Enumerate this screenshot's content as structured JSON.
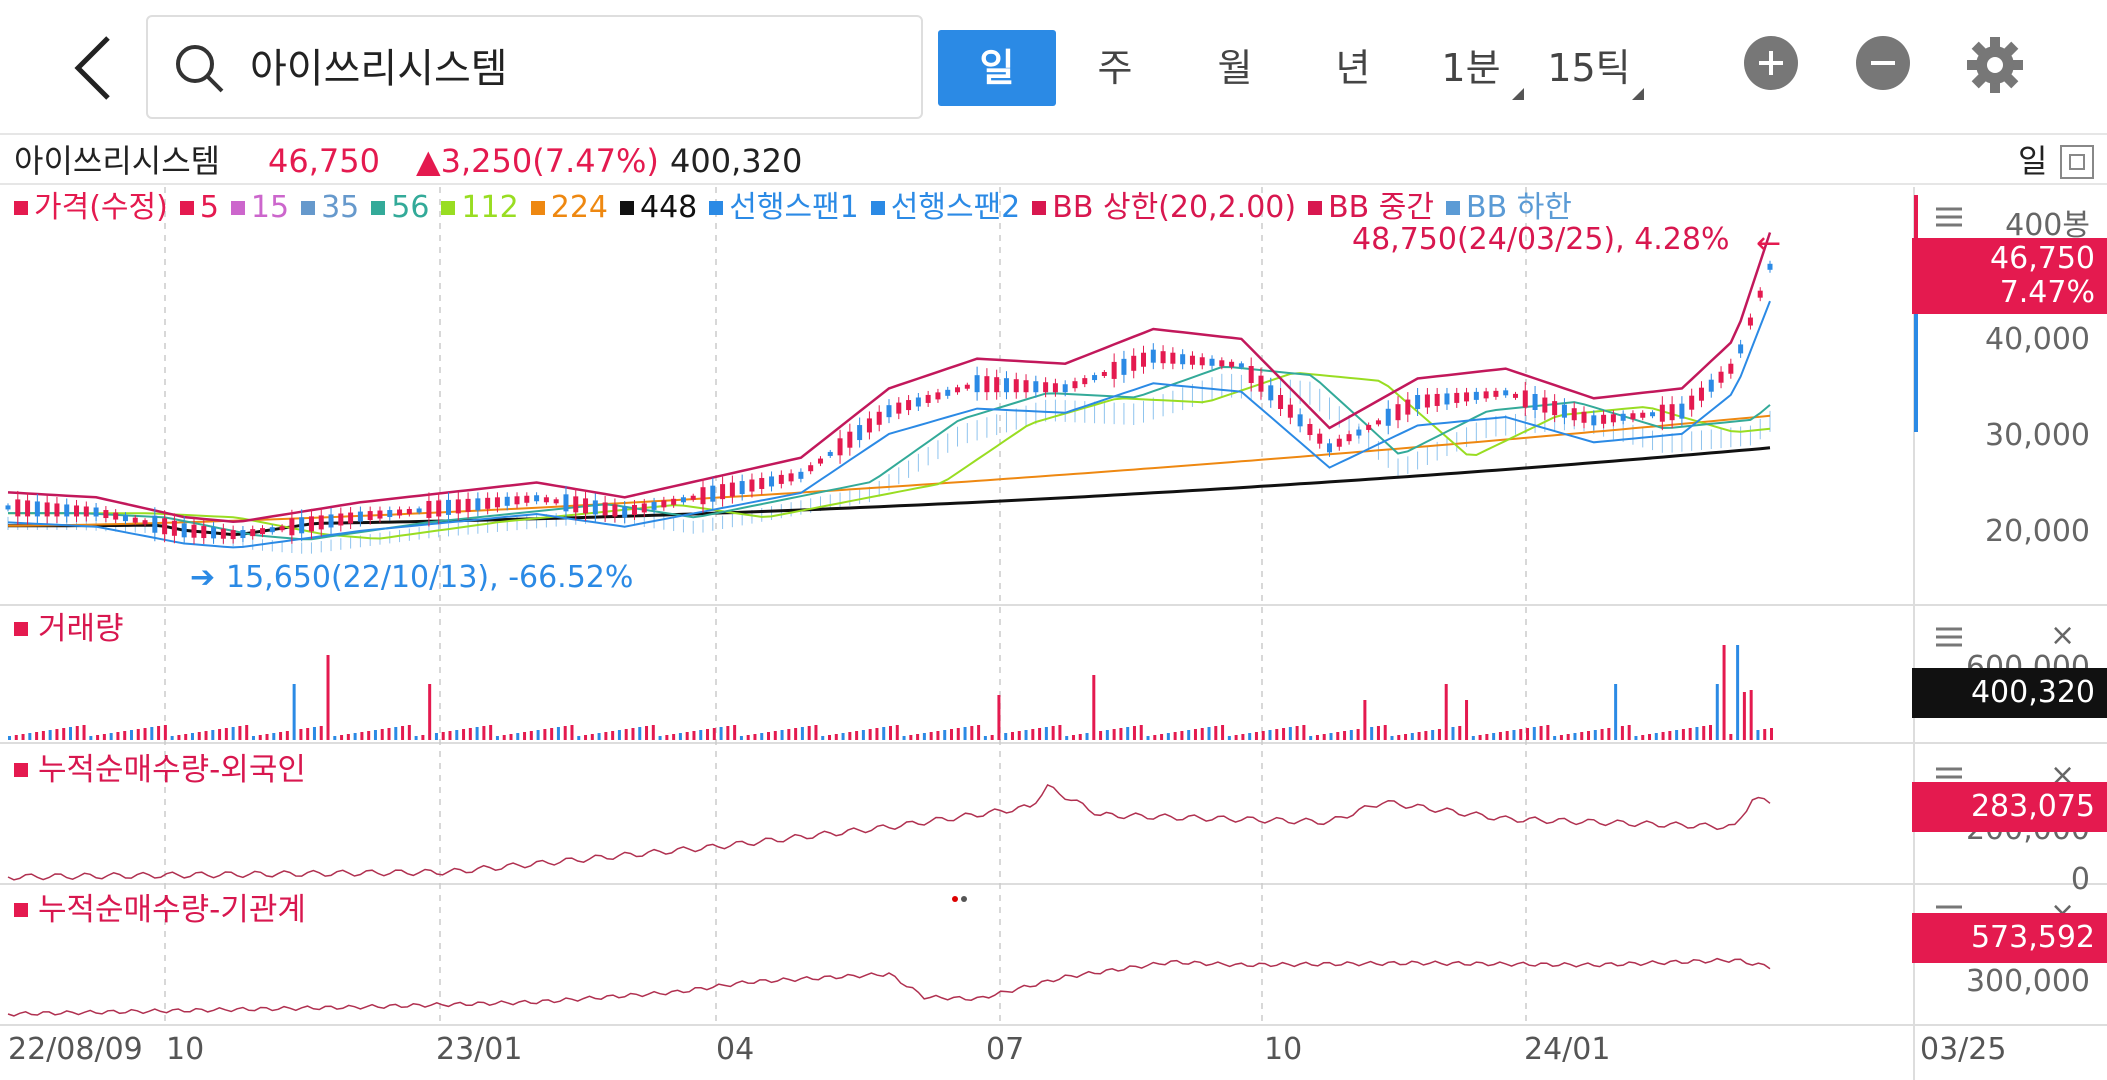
{
  "search": {
    "value": "아이쓰리시스템"
  },
  "periods": {
    "day": "일",
    "week": "주",
    "month": "월",
    "year": "년",
    "minute": "1분",
    "tick": "15틱"
  },
  "quote": {
    "name": "아이쓰리시스템",
    "price": "46,750",
    "change": "▲3,250(7.47%)",
    "volume": "400,320",
    "period": "일"
  },
  "legend": [
    {
      "label": "가격(수정)",
      "color": "#e41a4f"
    },
    {
      "label": "5",
      "color": "#e41a4f"
    },
    {
      "label": "15",
      "color": "#cc66cc"
    },
    {
      "label": "35",
      "color": "#6699cc"
    },
    {
      "label": "56",
      "color": "#33aa99"
    },
    {
      "label": "112",
      "color": "#99dd22"
    },
    {
      "label": "224",
      "color": "#ee8811"
    },
    {
      "label": "448",
      "color": "#111111"
    },
    {
      "label": "선행스팬1",
      "color": "#2b8ae5"
    },
    {
      "label": "선행스팬2",
      "color": "#2b8ae5"
    },
    {
      "label": "BB 상한(20,2.00)",
      "color": "#d8174f"
    },
    {
      "label": "BB 중간",
      "color": "#d8174f"
    },
    {
      "label": "BB 하한",
      "color": "#5b9bd5"
    }
  ],
  "annotations": {
    "high": "48,750(24/03/25), 4.28%",
    "low": "15,650(22/10/13), -66.52%"
  },
  "price_axis": {
    "unit": "400봉",
    "ticks": [
      "40,000",
      "30,000",
      "20,000"
    ],
    "badge_price": "46,750",
    "badge_pct": "7.47%"
  },
  "volume_panel": {
    "label": "거래량",
    "tick": "600,000",
    "badge": "400,320"
  },
  "foreign_panel": {
    "label": "누적순매수량-외국인",
    "tick_upper": "200,000",
    "tick_zero": "0",
    "badge": "283,075"
  },
  "inst_panel": {
    "label": "누적순매수량-기관계",
    "tick": "300,000",
    "badge": "573,592"
  },
  "dates": {
    "start": "22/08/09",
    "ticks": [
      "10",
      "23/01",
      "04",
      "07",
      "10",
      "24/01"
    ],
    "end": "03/25"
  },
  "colors": {
    "up": "#e41a4f",
    "down": "#2b8ae5",
    "active_tab": "#2b8ae5"
  }
}
